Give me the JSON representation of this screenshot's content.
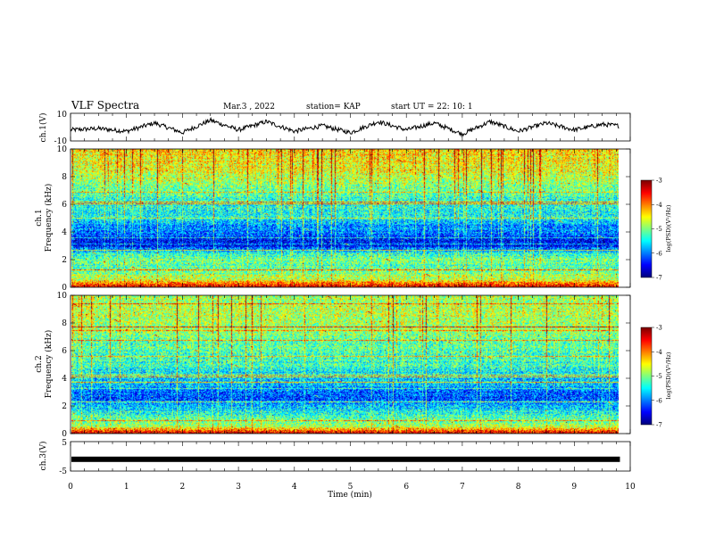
{
  "header": {
    "title": "VLF  Spectra",
    "date": "Mar.3   , 2022",
    "station": "station= KAP",
    "start": "start  UT  =    22: 10: 1"
  },
  "chart_data": [
    {
      "type": "line",
      "panel": "ch1-waveform",
      "ylabel": "ch.1(V)",
      "ylim": [
        -10,
        10
      ],
      "yticks": [
        "10",
        "-10"
      ],
      "xlim": [
        0,
        10
      ],
      "x": [
        0,
        0.5,
        1.0,
        1.5,
        2.0,
        2.5,
        3.0,
        3.5,
        4.0,
        4.5,
        5.0,
        5.5,
        6.0,
        6.5,
        7.0,
        7.5,
        8.0,
        8.5,
        9.0,
        9.5,
        9.8
      ],
      "values": [
        -2,
        -1,
        -3,
        3,
        -4,
        5,
        -2,
        4,
        -3,
        1,
        -4,
        4,
        -2,
        3,
        -5,
        4,
        -3,
        3,
        -2,
        2,
        1
      ]
    },
    {
      "type": "heatmap",
      "panel": "ch1-spectrogram",
      "ylabel_top": "ch.1",
      "ylabel": "Frequency  (kHz)",
      "ylim": [
        0,
        10
      ],
      "yticks": [
        "0",
        "2",
        "4",
        "6",
        "8",
        "10"
      ],
      "xlim": [
        0,
        10
      ],
      "data_end_min": 9.8,
      "colorbar": {
        "range": [
          -7,
          -3
        ],
        "ticks": [
          "-3",
          "-4",
          "-5",
          "-6",
          "-7"
        ],
        "label": "log(PSD)(V²/Hz)"
      },
      "band_profile_khz": [
        0,
        0.5,
        1,
        1.5,
        2,
        2.5,
        3,
        3.5,
        4,
        4.5,
        5,
        6,
        7,
        8,
        9,
        10
      ],
      "band_level_log_psd": [
        -3.4,
        -4.6,
        -5.0,
        -5.2,
        -5.0,
        -5.5,
        -6.5,
        -6.4,
        -6.0,
        -5.9,
        -5.4,
        -5.4,
        -5.1,
        -4.7,
        -4.5,
        -4.3
      ]
    },
    {
      "type": "heatmap",
      "panel": "ch2-spectrogram",
      "ylabel_top": "ch.2",
      "ylabel": "Frequency  (kHz)",
      "ylim": [
        0,
        10
      ],
      "yticks": [
        "0",
        "2",
        "4",
        "6",
        "8",
        "10"
      ],
      "xlim": [
        0,
        10
      ],
      "data_end_min": 9.8,
      "colorbar": {
        "range": [
          -7,
          -3
        ],
        "ticks": [
          "-3",
          "-4",
          "-5",
          "-6",
          "-7"
        ],
        "label": "log(PSD)(V²/Hz)"
      },
      "band_profile_khz": [
        0,
        0.5,
        1,
        1.5,
        2,
        2.5,
        3,
        3.5,
        4,
        4.5,
        5,
        6,
        7,
        8,
        9,
        10
      ],
      "band_level_log_psd": [
        -3.4,
        -4.8,
        -5.1,
        -5.4,
        -5.8,
        -6.2,
        -6.1,
        -5.8,
        -5.6,
        -5.5,
        -5.3,
        -5.2,
        -5.0,
        -4.8,
        -4.8,
        -4.9
      ]
    },
    {
      "type": "line",
      "panel": "ch3-waveform",
      "ylabel": "ch.3(V)",
      "ylim": [
        -5,
        5
      ],
      "yticks": [
        "5",
        "-5"
      ],
      "xlim": [
        0,
        10
      ],
      "x": [
        0,
        9.8
      ],
      "values": [
        -1,
        -1
      ]
    }
  ],
  "xaxis": {
    "label": "Time  (min)",
    "ticks": [
      "0",
      "1",
      "2",
      "3",
      "4",
      "5",
      "6",
      "7",
      "8",
      "9",
      "10"
    ]
  },
  "colors": {
    "background": "#ffffff",
    "axes": "#000000",
    "trace": "#000000"
  }
}
